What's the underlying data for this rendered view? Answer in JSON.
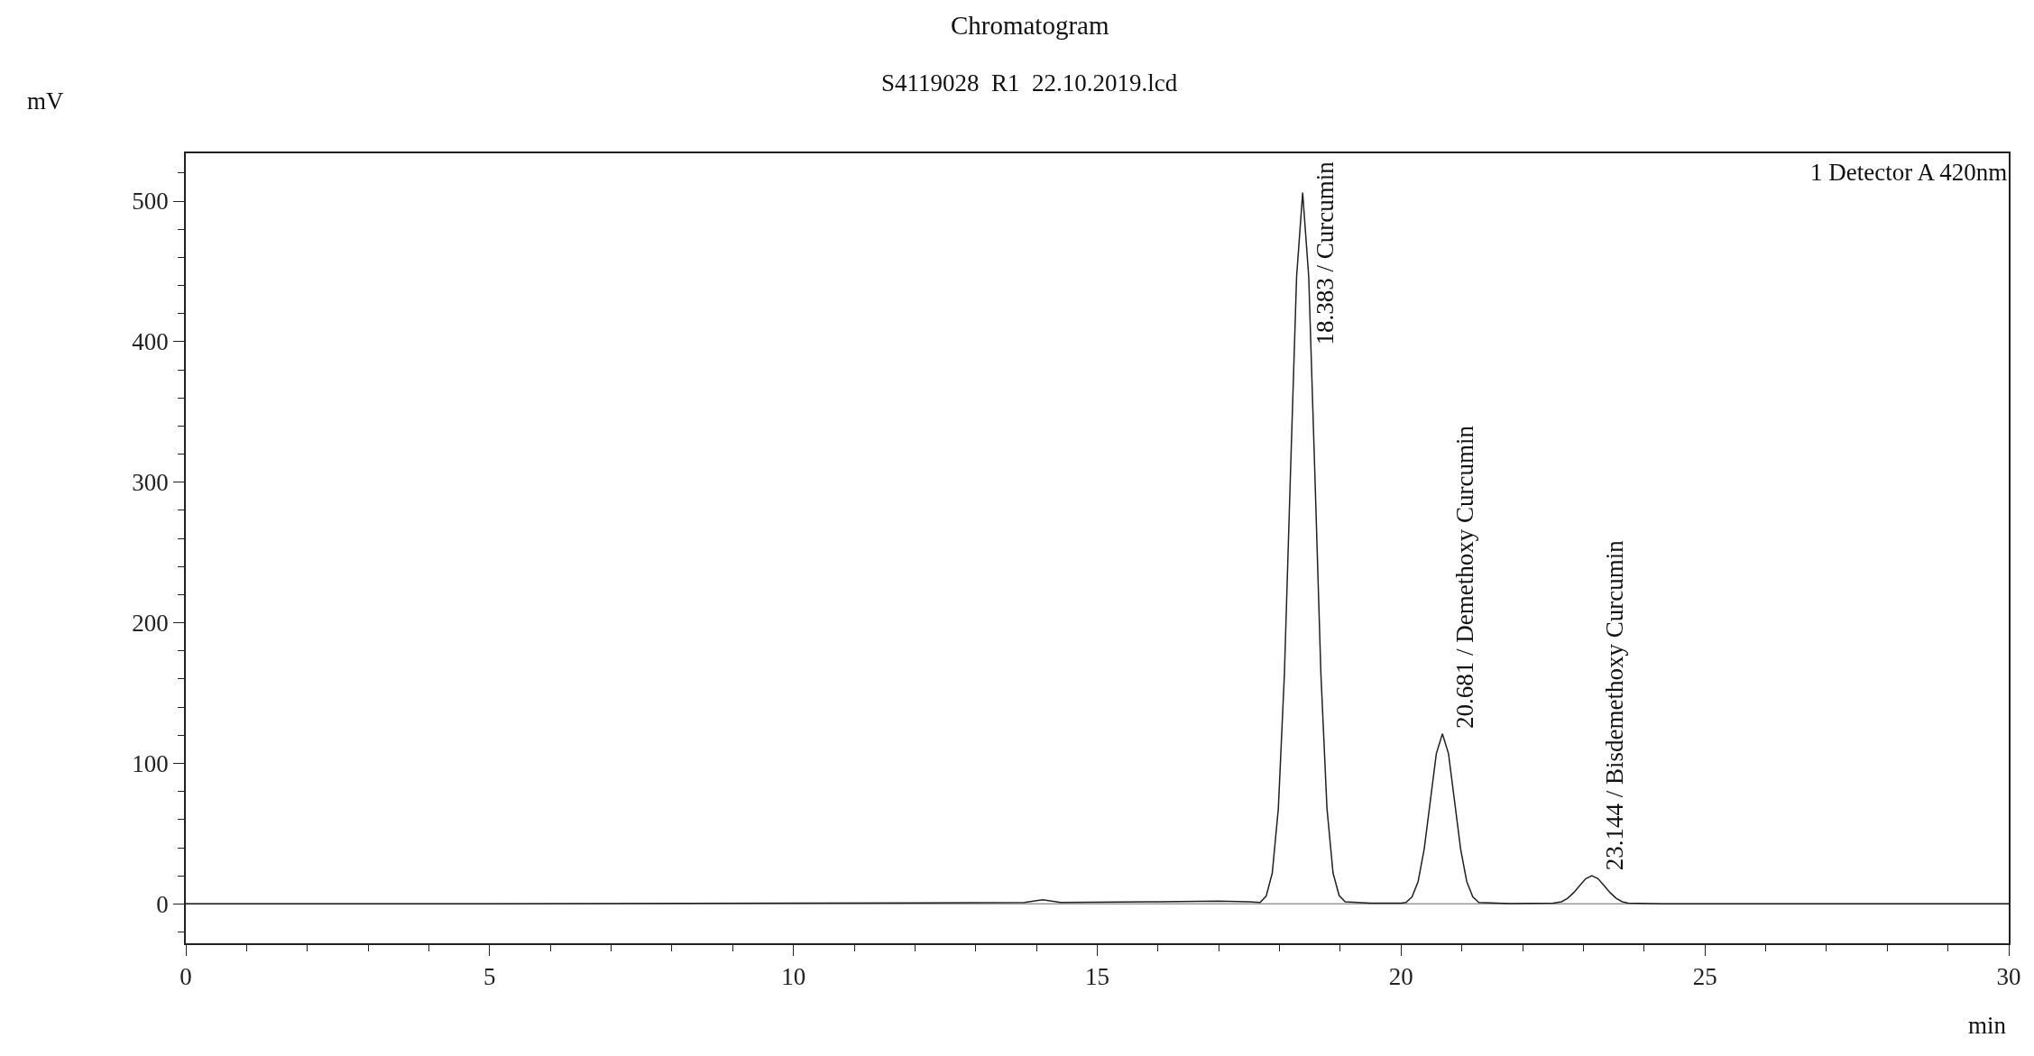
{
  "chart_data": {
    "type": "line",
    "title": "Chromatogram",
    "subtitle": "S4119028  R1  22.10.2019.lcd",
    "xlabel": "min",
    "ylabel": "mV",
    "x": [
      0,
      5,
      10,
      13.8,
      14.1,
      14.4,
      16,
      17,
      17.5,
      17.68,
      17.78,
      17.88,
      17.98,
      18.08,
      18.18,
      18.28,
      18.38,
      18.48,
      18.58,
      18.68,
      18.78,
      18.88,
      18.98,
      19.08,
      19.5,
      20.0,
      20.08,
      20.18,
      20.28,
      20.38,
      20.48,
      20.58,
      20.68,
      20.78,
      20.88,
      20.98,
      21.08,
      21.18,
      21.28,
      21.8,
      22.5,
      22.64,
      22.74,
      22.84,
      22.94,
      23.04,
      23.14,
      23.24,
      23.34,
      23.44,
      23.54,
      23.64,
      23.74,
      24.3,
      30
    ],
    "series": [
      {
        "color": "#222222",
        "values": [
          0,
          0,
          0.5,
          1,
          3,
          1,
          1.5,
          2,
          1.5,
          1,
          5.6,
          22,
          68,
          164,
          307,
          446,
          506,
          446,
          307,
          164,
          68,
          22,
          6,
          1.5,
          0.5,
          0.5,
          1,
          5,
          16,
          39,
          73,
          107,
          121,
          107,
          73,
          39,
          16,
          5,
          1,
          0.3,
          0.5,
          1.5,
          4,
          8,
          13,
          18,
          20,
          18,
          13,
          8,
          4,
          1.5,
          0.5,
          0,
          0
        ]
      }
    ],
    "xlim": [
      0,
      30
    ],
    "xticks": [
      0,
      5,
      10,
      15,
      20,
      25,
      30
    ],
    "ylim": [
      -28,
      534
    ],
    "yticks": [
      0,
      100,
      200,
      300,
      400,
      500
    ],
    "grid": false,
    "marker": "none",
    "line_style": "solid",
    "ref_lines": [
      {
        "axis": "y",
        "value": 0,
        "color": "#999999"
      }
    ],
    "annotations": [
      {
        "text": "18.383 / Curcumin",
        "x": 18.383,
        "y": 506
      },
      {
        "text": "20.681 / Demethoxy Curcumin",
        "x": 20.681,
        "y": 121
      },
      {
        "text": "23.144 / Bisdemethoxy Curcumin",
        "x": 23.144,
        "y": 20
      },
      "1 Detector A 420nm"
    ]
  }
}
